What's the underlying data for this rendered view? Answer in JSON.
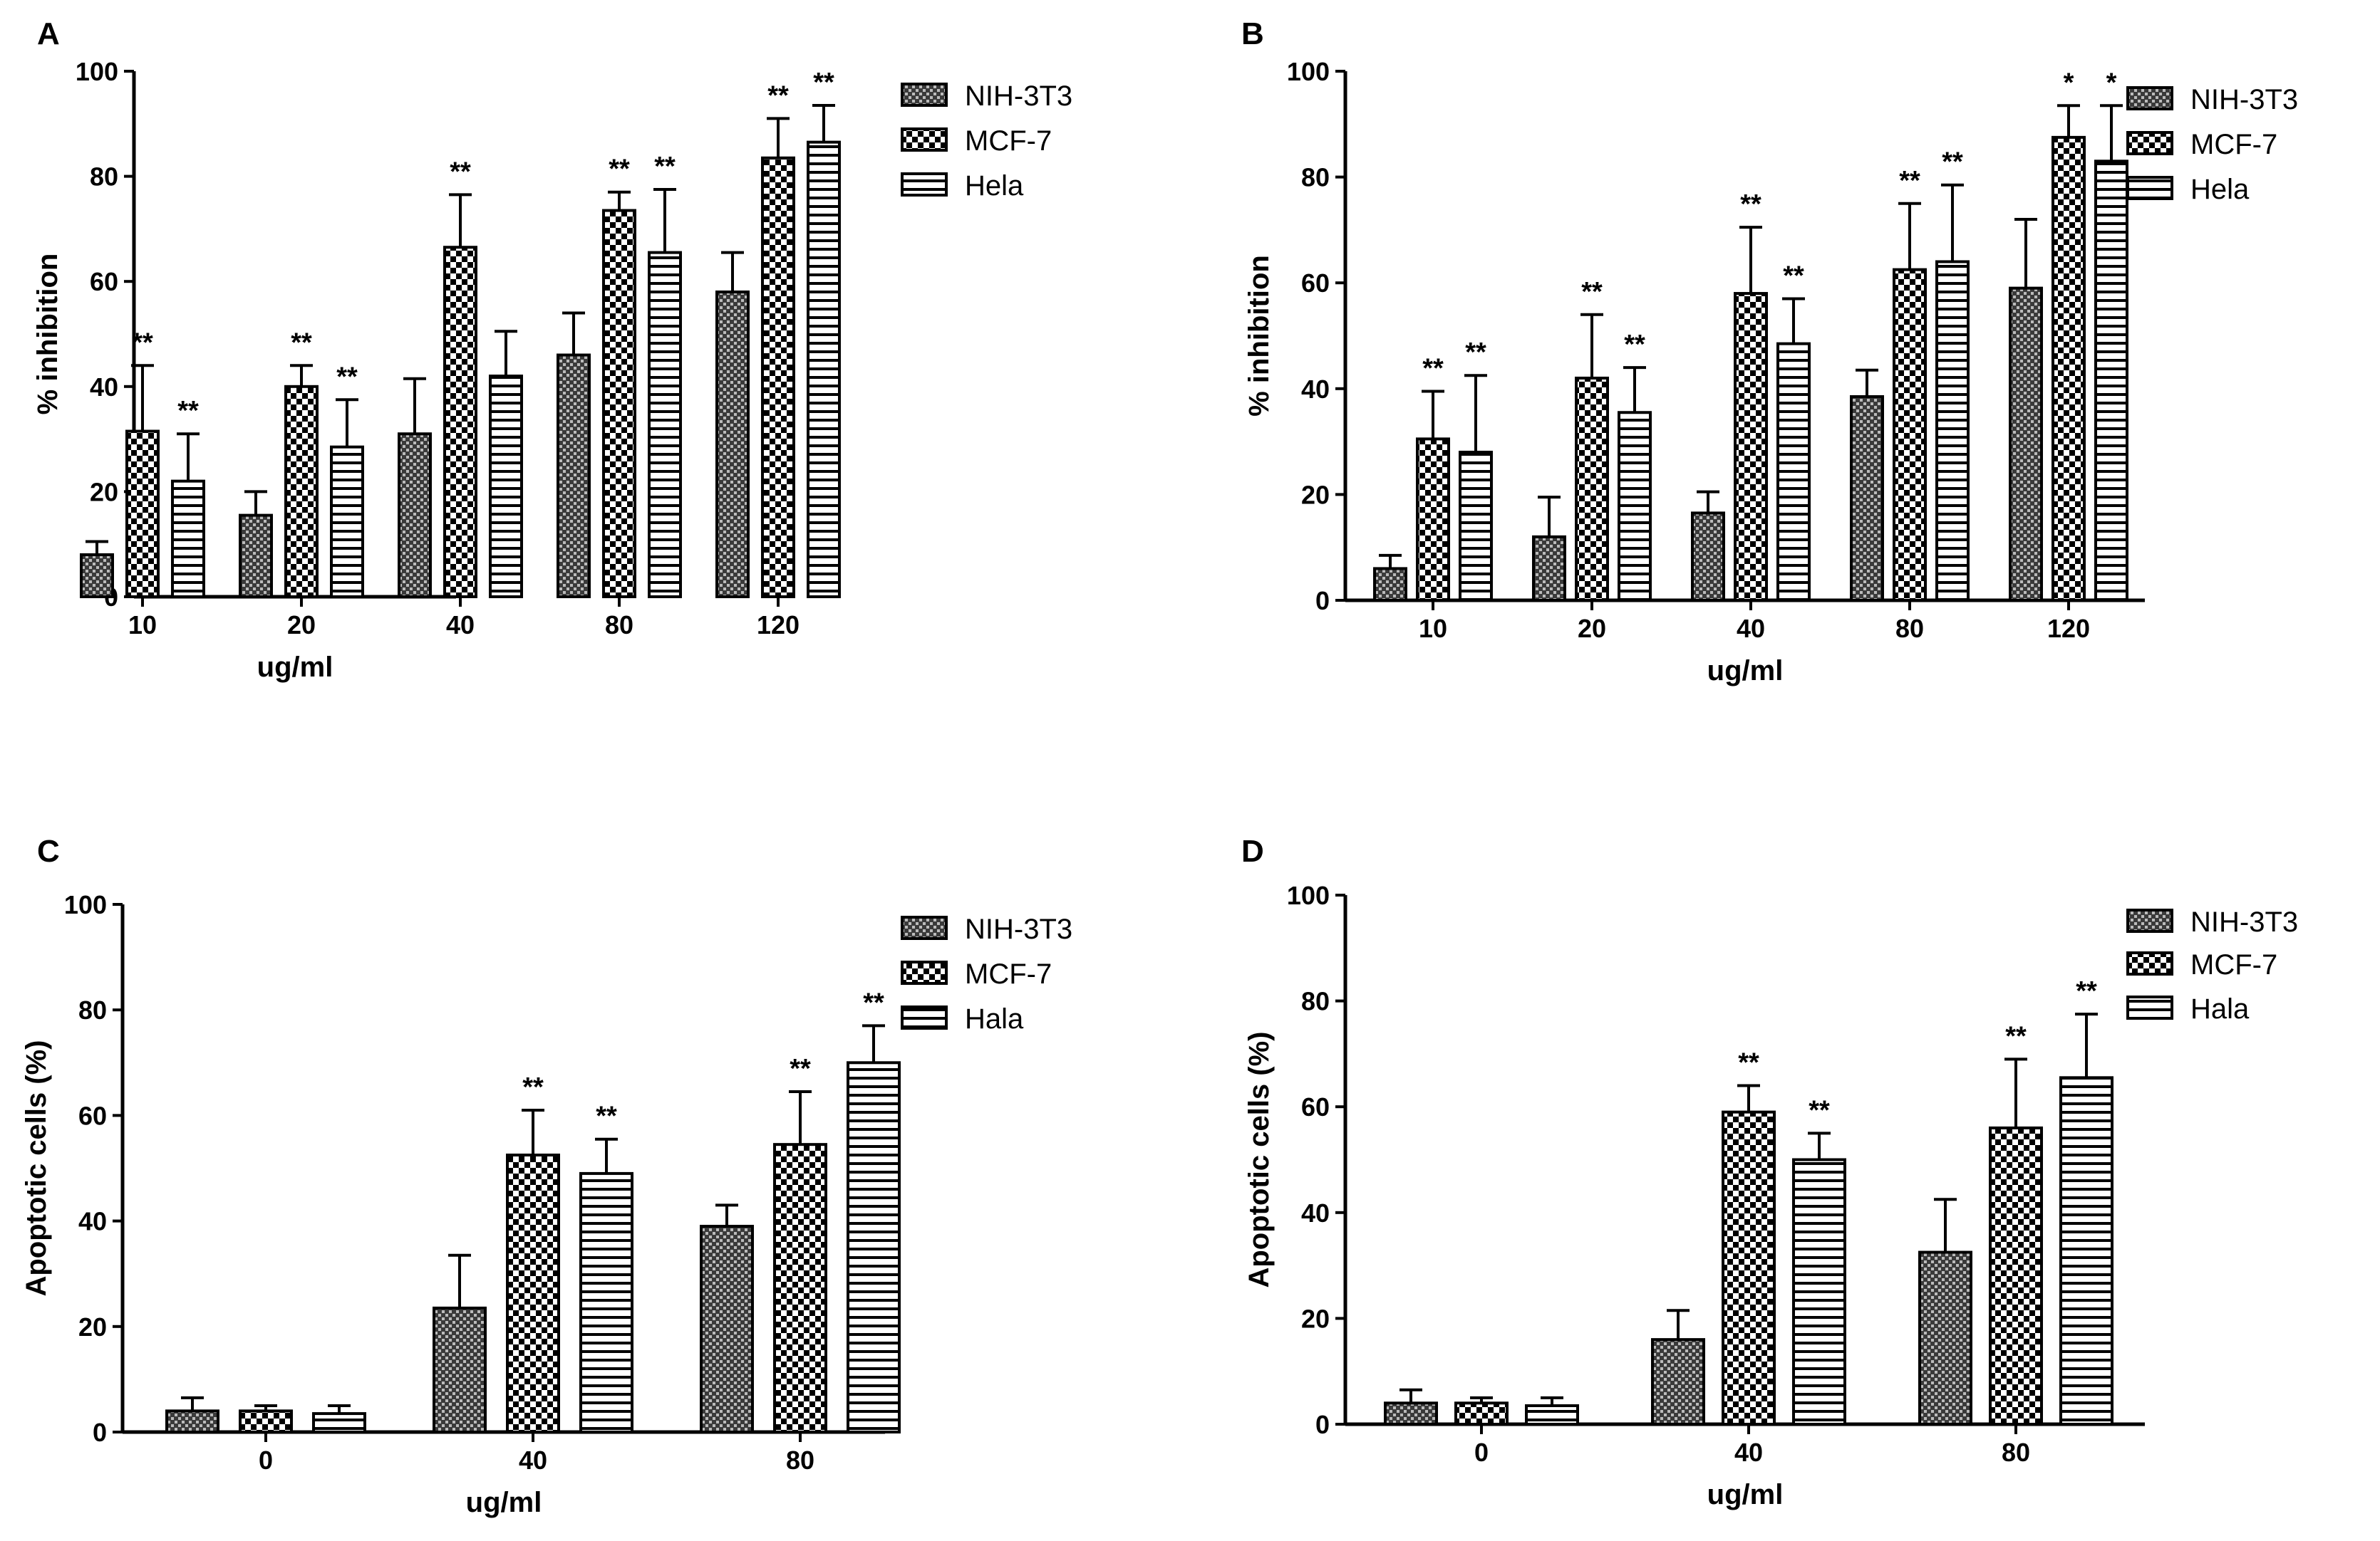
{
  "chart_data": [
    {
      "panel": "A",
      "type": "bar",
      "ylabel": "% inhibition",
      "xlabel": "ug/ml",
      "ylim": [
        0,
        100
      ],
      "yticks": [
        "0",
        "20",
        "40",
        "60",
        "80",
        "100"
      ],
      "categories": [
        "10",
        "20",
        "40",
        "80",
        "120"
      ],
      "legend": [
        "NIH-3T3",
        "MCF-7",
        "Hela"
      ],
      "series": [
        {
          "name": "NIH-3T3",
          "values": [
            8,
            15.5,
            31,
            46,
            58
          ],
          "errors": [
            2.5,
            4.5,
            10.5,
            8,
            7.5
          ],
          "marks": [
            "",
            "",
            "",
            "",
            ""
          ]
        },
        {
          "name": "MCF-7",
          "values": [
            31.5,
            40,
            66.5,
            73.5,
            83.5
          ],
          "errors": [
            12.5,
            4,
            10,
            3.5,
            7.5
          ],
          "marks": [
            "**",
            "**",
            "**",
            "**",
            "**"
          ]
        },
        {
          "name": "Hela",
          "values": [
            22,
            28.5,
            42,
            65.5,
            86.5
          ],
          "errors": [
            9,
            9,
            8.5,
            12,
            7
          ],
          "marks": [
            "**",
            "**",
            "",
            "**",
            "**"
          ]
        }
      ]
    },
    {
      "panel": "B",
      "type": "bar",
      "ylabel": "% inhibition",
      "xlabel": "ug/ml",
      "ylim": [
        0,
        100
      ],
      "yticks": [
        "0",
        "20",
        "40",
        "60",
        "80",
        "100"
      ],
      "categories": [
        "10",
        "20",
        "40",
        "80",
        "120"
      ],
      "legend": [
        "NIH-3T3",
        "MCF-7",
        "Hela"
      ],
      "series": [
        {
          "name": "NIH-3T3",
          "values": [
            6,
            12,
            16.5,
            38.5,
            59
          ],
          "errors": [
            2.5,
            7.5,
            4,
            5,
            13
          ],
          "marks": [
            "",
            "",
            "",
            "",
            ""
          ]
        },
        {
          "name": "MCF-7",
          "values": [
            30.5,
            42,
            58,
            62.5,
            87.5
          ],
          "errors": [
            9,
            12,
            12.5,
            12.5,
            6
          ],
          "marks": [
            "**",
            "**",
            "**",
            "**",
            "*"
          ]
        },
        {
          "name": "Hela",
          "values": [
            28,
            35.5,
            48.5,
            64,
            83
          ],
          "errors": [
            14.5,
            8.5,
            8.5,
            14.5,
            10.5
          ],
          "marks": [
            "**",
            "**",
            "**",
            "**",
            "*"
          ]
        }
      ]
    },
    {
      "panel": "C",
      "type": "bar",
      "ylabel": "Apoptotic cells (%)",
      "xlabel": "ug/ml",
      "ylim": [
        0,
        100
      ],
      "yticks": [
        "0",
        "20",
        "40",
        "60",
        "80",
        "100"
      ],
      "categories": [
        "0",
        "40",
        "80"
      ],
      "legend": [
        "NIH-3T3",
        "MCF-7",
        "Hala"
      ],
      "series": [
        {
          "name": "NIH-3T3",
          "values": [
            4,
            23.5,
            39
          ],
          "errors": [
            2.5,
            10,
            4
          ],
          "marks": [
            "",
            "",
            ""
          ]
        },
        {
          "name": "MCF-7",
          "values": [
            4,
            52.5,
            54.5
          ],
          "errors": [
            1,
            8.5,
            10
          ],
          "marks": [
            "",
            "**",
            "**"
          ]
        },
        {
          "name": "Hala",
          "values": [
            3.5,
            49,
            70
          ],
          "errors": [
            1.5,
            6.5,
            7
          ],
          "marks": [
            "",
            "**",
            "**"
          ]
        }
      ]
    },
    {
      "panel": "D",
      "type": "bar",
      "ylabel": "Apoptotic cells (%)",
      "xlabel": "ug/ml",
      "ylim": [
        0,
        100
      ],
      "yticks": [
        "0",
        "20",
        "40",
        "60",
        "80",
        "100"
      ],
      "categories": [
        "0",
        "40",
        "80"
      ],
      "legend": [
        "NIH-3T3",
        "MCF-7",
        "Hala"
      ],
      "series": [
        {
          "name": "NIH-3T3",
          "values": [
            4,
            16,
            32.5
          ],
          "errors": [
            2.5,
            5.5,
            10
          ],
          "marks": [
            "",
            "",
            ""
          ]
        },
        {
          "name": "MCF-7",
          "values": [
            4,
            59,
            56
          ],
          "errors": [
            1,
            5,
            13
          ],
          "marks": [
            "",
            "**",
            "**"
          ]
        },
        {
          "name": "Hala",
          "values": [
            3.5,
            50,
            65.5
          ],
          "errors": [
            1.5,
            5,
            12
          ],
          "marks": [
            "",
            "**",
            "**"
          ]
        }
      ]
    }
  ]
}
